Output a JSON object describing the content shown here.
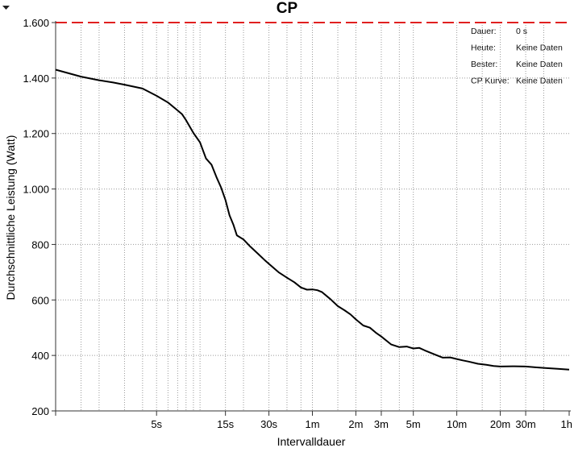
{
  "chart_data": {
    "type": "line",
    "title": "CP",
    "xlabel": "Intervalldauer",
    "ylabel": "Durchschnittliche Leistung (Watt)",
    "x_scale": "log",
    "x_unit": "seconds",
    "xlim": [
      1,
      3600
    ],
    "ylim": [
      200,
      1600
    ],
    "x_ticks": [
      {
        "value": 5,
        "label": "5s"
      },
      {
        "value": 15,
        "label": "15s"
      },
      {
        "value": 30,
        "label": "30s"
      },
      {
        "value": 60,
        "label": "1m"
      },
      {
        "value": 120,
        "label": "2m"
      },
      {
        "value": 180,
        "label": "3m"
      },
      {
        "value": 300,
        "label": "5m"
      },
      {
        "value": 600,
        "label": "10m"
      },
      {
        "value": 1200,
        "label": "20m"
      },
      {
        "value": 1800,
        "label": "30m"
      },
      {
        "value": 3600,
        "label": "1h"
      }
    ],
    "y_ticks": [
      {
        "value": 200,
        "label": "200"
      },
      {
        "value": 400,
        "label": "400"
      },
      {
        "value": 600,
        "label": "600"
      },
      {
        "value": 800,
        "label": "800"
      },
      {
        "value": 1000,
        "label": "1.000"
      },
      {
        "value": 1200,
        "label": "1.200"
      },
      {
        "value": 1400,
        "label": "1.400"
      },
      {
        "value": 1600,
        "label": "1.600"
      }
    ],
    "x_minor_gridlines": [
      1.5,
      2,
      3,
      4,
      6,
      7,
      8,
      9,
      10,
      20,
      40,
      50,
      90,
      240,
      900,
      2400
    ],
    "grid": true,
    "reference_line": {
      "y": 1600,
      "color": "#e02020",
      "style": "dashed"
    },
    "series": [
      {
        "color": "#000000",
        "x": [
          1,
          1.5,
          2,
          2.5,
          3,
          4,
          5,
          6,
          7,
          7.5,
          8,
          9,
          10,
          11,
          12,
          13,
          14,
          15,
          16,
          17,
          18,
          20,
          22,
          25,
          28,
          30,
          35,
          40,
          45,
          50,
          55,
          60,
          65,
          70,
          80,
          90,
          100,
          110,
          120,
          135,
          150,
          165,
          180,
          210,
          240,
          270,
          300,
          330,
          360,
          420,
          480,
          540,
          600,
          660,
          720,
          840,
          960,
          1080,
          1200,
          1500,
          1800,
          2100,
          2400,
          3000,
          3600
        ],
        "y": [
          1430,
          1405,
          1392,
          1384,
          1376,
          1362,
          1336,
          1312,
          1283,
          1270,
          1248,
          1202,
          1168,
          1110,
          1088,
          1043,
          1005,
          960,
          905,
          872,
          833,
          818,
          795,
          768,
          744,
          730,
          700,
          680,
          664,
          645,
          637,
          638,
          635,
          628,
          603,
          578,
          563,
          548,
          530,
          508,
          500,
          482,
          468,
          440,
          430,
          432,
          425,
          427,
          418,
          404,
          392,
          393,
          387,
          382,
          378,
          370,
          366,
          362,
          360,
          361,
          360,
          357,
          355,
          352,
          349
        ]
      }
    ]
  },
  "info_panel": [
    {
      "key": "Dauer:",
      "value": "0 s"
    },
    {
      "key": "Heute:",
      "value": "Keine Daten"
    },
    {
      "key": "Bester:",
      "value": "Keine Daten"
    },
    {
      "key": "CP Kurve:",
      "value": "Keine Daten"
    }
  ],
  "menu_icon": "triangle-down-icon"
}
